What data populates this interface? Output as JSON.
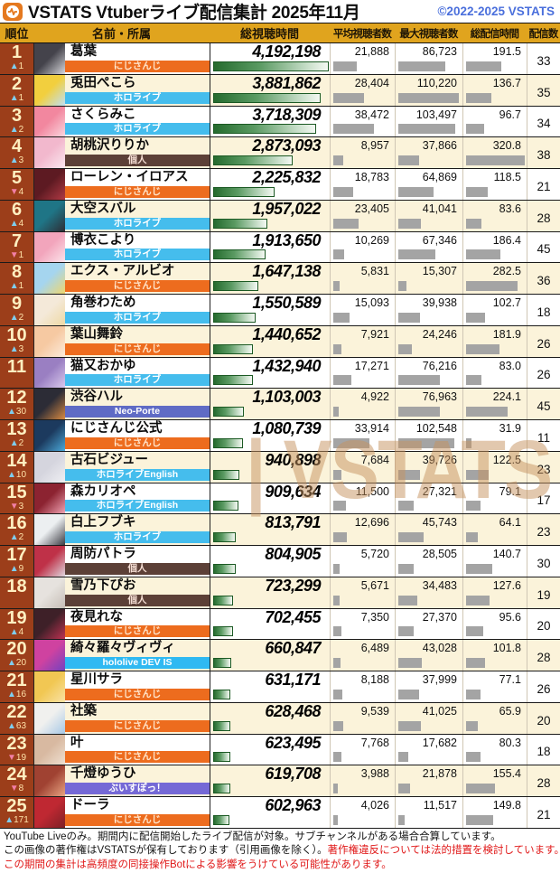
{
  "header": {
    "title": "VSTATS Vtuberライブ配信集計 2025年11月",
    "copyright": "©2022-2025 VSTATS",
    "logo_icon": "pulse-icon",
    "logo_color": "#e5791f"
  },
  "columns": {
    "rank": "順位",
    "name": "名前・所属",
    "total_watch": "総視聴時間",
    "avg_viewers": "平均視聴者数",
    "max_viewers": "最大視聴者数",
    "total_hours": "総配信時間",
    "streams": "配信数"
  },
  "watermark": {
    "text": "| VSTATS"
  },
  "chart_data": {
    "type": "table",
    "title": "VSTATS Vtuberライブ配信集計 2025年11月",
    "columns": [
      "順位",
      "順位変動",
      "名前",
      "所属",
      "総視聴時間",
      "平均視聴者数",
      "最大視聴者数",
      "総配信時間",
      "配信数"
    ],
    "rows": [
      [
        1,
        "▲1",
        "葛葉",
        "にじさんじ",
        4192198,
        21888,
        86723,
        191.5,
        33
      ],
      [
        2,
        "▲1",
        "兎田ぺこら",
        "ホロライブ",
        3881862,
        28404,
        110220,
        136.7,
        35
      ],
      [
        3,
        "▲2",
        "さくらみこ",
        "ホロライブ",
        3718309,
        38472,
        103497,
        96.7,
        34
      ],
      [
        4,
        "▲3",
        "胡桃沢りりか",
        "個人",
        2873093,
        8957,
        37866,
        320.8,
        38
      ],
      [
        5,
        "▼4",
        "ローレン・イロアス",
        "にじさんじ",
        2225832,
        18783,
        64869,
        118.5,
        21
      ],
      [
        6,
        "▲4",
        "大空スバル",
        "ホロライブ",
        1957022,
        23405,
        41041,
        83.6,
        28
      ],
      [
        7,
        "▼1",
        "博衣こより",
        "ホロライブ",
        1913650,
        10269,
        67346,
        186.4,
        45
      ],
      [
        8,
        "▲1",
        "エクス・アルビオ",
        "にじさんじ",
        1647138,
        5831,
        15307,
        282.5,
        36
      ],
      [
        9,
        "▲2",
        "角巻わため",
        "ホロライブ",
        1550589,
        15093,
        39938,
        102.7,
        18
      ],
      [
        10,
        "▲3",
        "葉山舞鈴",
        "にじさんじ",
        1440652,
        7921,
        24246,
        181.9,
        26
      ],
      [
        11,
        "",
        "猫又おかゆ",
        "ホロライブ",
        1432940,
        17271,
        76216,
        83.0,
        26
      ],
      [
        12,
        "▲30",
        "渋谷ハル",
        "Neo-Porte",
        1103003,
        4922,
        76963,
        224.1,
        45
      ],
      [
        13,
        "▲2",
        "にじさんじ公式",
        "にじさんじ",
        1080739,
        33914,
        102548,
        31.9,
        11
      ],
      [
        14,
        "▲10",
        "古石ビジュー",
        "ホロライブEnglish",
        940898,
        7684,
        39726,
        122.5,
        23
      ],
      [
        15,
        "▼3",
        "森カリオペ",
        "ホロライブEnglish",
        909634,
        11500,
        27321,
        79.1,
        17
      ],
      [
        16,
        "▲2",
        "白上フブキ",
        "ホロライブ",
        813791,
        12696,
        45743,
        64.1,
        23
      ],
      [
        17,
        "▲9",
        "周防パトラ",
        "個人",
        804905,
        5720,
        28505,
        140.7,
        30
      ],
      [
        18,
        "",
        "雪乃下ぴお",
        "個人",
        723299,
        5671,
        34483,
        127.6,
        19
      ],
      [
        19,
        "▲4",
        "夜見れな",
        "にじさんじ",
        702455,
        7350,
        27370,
        95.6,
        20
      ],
      [
        20,
        "▲20",
        "綺々羅々ヴィヴィ",
        "hololive DEV IS",
        660847,
        6489,
        43028,
        101.8,
        28
      ],
      [
        21,
        "▲16",
        "星川サラ",
        "にじさんじ",
        631171,
        8188,
        37999,
        77.1,
        26
      ],
      [
        22,
        "▲63",
        "社築",
        "にじさんじ",
        628468,
        9539,
        41025,
        65.9,
        20
      ],
      [
        23,
        "▼19",
        "叶",
        "にじさんじ",
        623495,
        7768,
        17682,
        80.3,
        18
      ],
      [
        24,
        "▼8",
        "千燈ゆうひ",
        "ぶいすぽっ！",
        619708,
        3988,
        21878,
        155.4,
        28
      ],
      [
        25,
        "▲171",
        "ドーラ",
        "にじさんじ",
        602963,
        4026,
        11517,
        149.8,
        21
      ]
    ]
  },
  "org_styles": {
    "にじさんじ": {
      "bg": "#ed6c1e",
      "fg": "#ffe3c8"
    },
    "ホロライブ": {
      "bg": "#45bded",
      "fg": "#ffffff"
    },
    "ホロライブEnglish": {
      "bg": "#45bded",
      "fg": "#ffffff"
    },
    "個人": {
      "bg": "#5c4037",
      "fg": "#f4ddd3"
    },
    "Neo-Porte": {
      "bg": "#5f6bc5",
      "fg": "#ffffff"
    },
    "hololive DEV IS": {
      "bg": "#2fb9f2",
      "fg": "#ffffff"
    },
    "ぶいすぽっ！": {
      "bg": "#7569d6",
      "fg": "#ffffff"
    }
  },
  "avatar_colors": [
    [
      "#44434b",
      "#d8d8dc"
    ],
    [
      "#f2cf3e",
      "#bfe0f5"
    ],
    [
      "#f2879f",
      "#fad6de"
    ],
    [
      "#f2b8cd",
      "#fae8f0"
    ],
    [
      "#5d1a22",
      "#b03a44"
    ],
    [
      "#1f7586",
      "#2e2e35"
    ],
    [
      "#f2a5bc",
      "#fce3ea"
    ],
    [
      "#a5d5ef",
      "#eed76e"
    ],
    [
      "#f4e9d9",
      "#eed9a4"
    ],
    [
      "#f6c9a2",
      "#fcecdc"
    ],
    [
      "#9a7fc2",
      "#d9c9ed"
    ],
    [
      "#2c2c36",
      "#d98a42"
    ],
    [
      "#1c3a5e",
      "#4ba8d8"
    ],
    [
      "#d5d5de",
      "#efeff3"
    ],
    [
      "#8c2331",
      "#efa2b2"
    ],
    [
      "#eceff1",
      "#3a3a42"
    ],
    [
      "#bf3148",
      "#ded6de"
    ],
    [
      "#e6e2de",
      "#c6beb6"
    ],
    [
      "#3e2028",
      "#bf3252"
    ],
    [
      "#cf42a0",
      "#7342bf"
    ],
    [
      "#f1c753",
      "#f9e2a4"
    ],
    [
      "#f0f0ee",
      "#a8c8e6"
    ],
    [
      "#d8b9a1",
      "#efe0d1"
    ],
    [
      "#a04232",
      "#e8a482"
    ],
    [
      "#bf2832",
      "#7e2026"
    ]
  ],
  "colors": {
    "header_gold": "#e0a41e",
    "rank_column": "#9c3e1a",
    "row_alt": "#fbf3da",
    "up_arrow": "#7fcdee",
    "down_arrow": "#f27fa5",
    "copyright_blue": "#4a6fdc",
    "footer_red": "#e01818",
    "bar_green_dark": "#256b2e",
    "bar_gray": "#a4a4a4",
    "watermark_tan": "rgba(197,146,94,0.5)"
  },
  "footer": {
    "line1": "YouTube Liveのみ。期間内に配信開始したライブ配信が対象。サブチャンネルがある場合合算しています。",
    "line2_black": "この画像の著作権はVSTATSが保有しております（引用画像を除く）。",
    "line2_red": "著作権違反については法的措置を検討しています。",
    "line3_red": "この期間の集計は高頻度の同接操作Botによる影響をうけている可能性があります。"
  }
}
